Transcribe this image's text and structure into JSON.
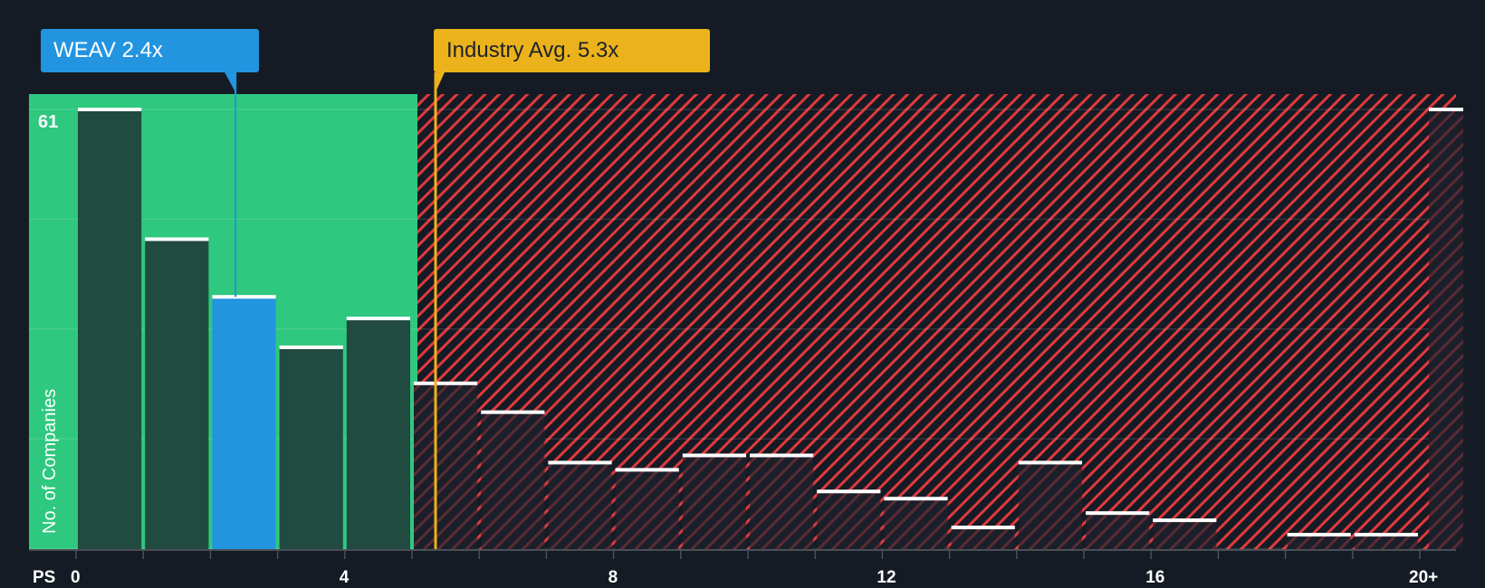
{
  "chart_data": {
    "type": "bar",
    "title": "",
    "xlabel": "PS",
    "ylabel": "No. of Companies",
    "x_tick_labels": [
      "0",
      "4",
      "8",
      "12",
      "16",
      "20+"
    ],
    "y_tick_labels": [
      "61"
    ],
    "ylim": [
      0,
      61
    ],
    "categories": [
      "0-1",
      "1-2",
      "2-3",
      "3-4",
      "4-5",
      "5-6",
      "6-7",
      "7-8",
      "8-9",
      "9-10",
      "10-11",
      "11-12",
      "12-13",
      "13-14",
      "14-15",
      "15-16",
      "16-17",
      "17-18",
      "18-19",
      "19-20",
      "20+"
    ],
    "values": [
      61,
      43,
      35,
      28,
      32,
      23,
      19,
      12,
      11,
      13,
      13,
      8,
      7,
      3,
      12,
      5,
      4,
      0,
      2,
      2,
      61
    ],
    "highlight_index": 2,
    "annotations": [
      {
        "label": "WEAV 2.4x",
        "value": 2.4,
        "color": "#2394e0"
      },
      {
        "label": "Industry Avg. 5.3x",
        "value": 5.3,
        "color": "#ebb21b"
      }
    ],
    "grid": true,
    "legend": "none"
  },
  "labels": {
    "company_callout": "WEAV 2.4x",
    "industry_callout": "Industry Avg. 5.3x",
    "x_axis_prefix": "PS",
    "y_axis_title": "No. of Companies",
    "y_max_label": "61"
  },
  "colors": {
    "background": "#151b24",
    "undervalued_zone": "#2ec87f",
    "bar_in_zone": "#214a40",
    "bar_company": "#2394e0",
    "overvalued_stripe": "#e0393e",
    "industry_line": "#ebb21b",
    "bar_cap": "#ffffff"
  }
}
